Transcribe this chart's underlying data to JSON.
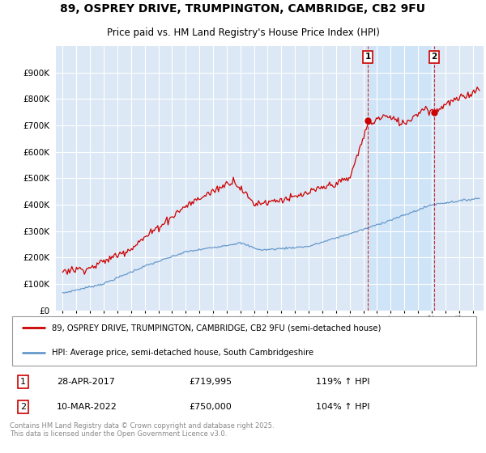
{
  "title_line1": "89, OSPREY DRIVE, TRUMPINGTON, CAMBRIDGE, CB2 9FU",
  "title_line2": "Price paid vs. HM Land Registry's House Price Index (HPI)",
  "background_color": "#ffffff",
  "plot_bg_color": "#dce8f5",
  "highlight_color": "#d0e4f7",
  "grid_color": "#ffffff",
  "red_color": "#cc0000",
  "blue_color": "#6699cc",
  "annotation1": {
    "label": "1",
    "date_str": "28-APR-2017",
    "price": 719995,
    "hpi_pct": "119% ↑ HPI",
    "x_year": 2017.32
  },
  "annotation2": {
    "label": "2",
    "date_str": "10-MAR-2022",
    "price": 750000,
    "hpi_pct": "104% ↑ HPI",
    "x_year": 2022.19
  },
  "legend_label1": "89, OSPREY DRIVE, TRUMPINGTON, CAMBRIDGE, CB2 9FU (semi-detached house)",
  "legend_label2": "HPI: Average price, semi-detached house, South Cambridgeshire",
  "footnote": "Contains HM Land Registry data © Crown copyright and database right 2025.\nThis data is licensed under the Open Government Licence v3.0.",
  "ylim": [
    0,
    1000000
  ],
  "yticks": [
    0,
    100000,
    200000,
    300000,
    400000,
    500000,
    600000,
    700000,
    800000,
    900000
  ],
  "xlim_start": 1994.5,
  "xlim_end": 2025.8,
  "dot1_y": 719995,
  "dot2_y": 750000
}
